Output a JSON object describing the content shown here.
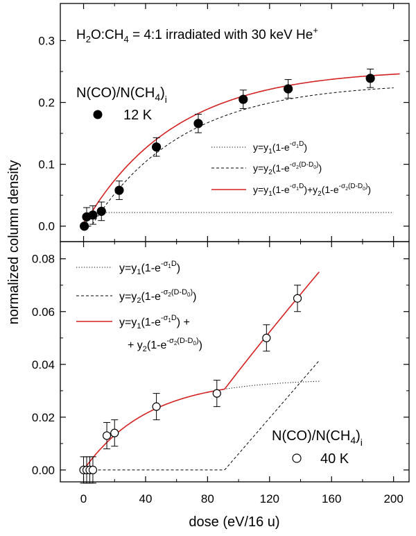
{
  "figure": {
    "ylabel": "normalized column density",
    "xlabel": "dose (eV/16 u)"
  },
  "colors": {
    "fit": "#d42020",
    "axis": "#000000"
  },
  "chart_data": [
    {
      "type": "scatter",
      "panel": "top",
      "title": {
        "text": "H2O:CH4 = 4:1 irradiated with 30 keV He+",
        "parts": [
          "H",
          "2",
          "O:CH",
          "4",
          " = 4:1 irradiated with 30 keV He",
          "+"
        ]
      },
      "xlim": [
        -15,
        210
      ],
      "ylim": [
        -0.025,
        0.36
      ],
      "xticks": [
        0,
        40,
        80,
        120,
        160,
        200
      ],
      "yticks": [
        0.0,
        0.1,
        0.2,
        0.3
      ],
      "ytick_labels": [
        "0.0",
        "0.1",
        "0.2",
        "0.3"
      ],
      "series_label": {
        "main": "N(CO)/N(CH",
        "sub": "4",
        "close": ")",
        "sub2": "i"
      },
      "marker_label": "12 K",
      "marker": "filled-circle",
      "points": [
        {
          "x": 0.5,
          "y": 0.0,
          "err": 0.0
        },
        {
          "x": 2,
          "y": 0.015,
          "err": 0.015
        },
        {
          "x": 6,
          "y": 0.018,
          "err": 0.015
        },
        {
          "x": 11.5,
          "y": 0.024,
          "err": 0.015
        },
        {
          "x": 23,
          "y": 0.058,
          "err": 0.015
        },
        {
          "x": 47,
          "y": 0.128,
          "err": 0.015
        },
        {
          "x": 74,
          "y": 0.166,
          "err": 0.015
        },
        {
          "x": 103,
          "y": 0.205,
          "err": 0.015
        },
        {
          "x": 132,
          "y": 0.222,
          "err": 0.015
        },
        {
          "x": 185,
          "y": 0.239,
          "err": 0.015
        }
      ],
      "legend": [
        {
          "style": "dotted",
          "label": "y=y1(1-e^(-σ1D))"
        },
        {
          "style": "dashed",
          "label": "y=y2(1-e^(-σ2(D-D0)))"
        },
        {
          "style": "solid-red",
          "label": "y=y1(1-e^(-σ1D))+y2(1-e^(-σ2(D-D0)))"
        }
      ],
      "fit": {
        "y1": 0.022,
        "sigma1": 0.6,
        "y2": 0.232,
        "sigma2": 0.017,
        "D0": 5
      }
    },
    {
      "type": "scatter",
      "panel": "bottom",
      "xlim": [
        -15,
        210
      ],
      "ylim": [
        -0.0045,
        0.0865
      ],
      "xticks": [
        0,
        40,
        80,
        120,
        160,
        200
      ],
      "yticks": [
        0.0,
        0.02,
        0.04,
        0.06,
        0.08
      ],
      "ytick_labels": [
        "0.00",
        "0.02",
        "0.04",
        "0.06",
        "0.08"
      ],
      "series_label": {
        "main": "N(CO)/N(CH",
        "sub": "4",
        "close": ")",
        "sub2": "i"
      },
      "marker_label": "40 K",
      "marker": "open-circle",
      "points": [
        {
          "x": 0,
          "y": 0.0,
          "err": 0.005
        },
        {
          "x": 2,
          "y": 0.0,
          "err": 0.005
        },
        {
          "x": 4,
          "y": 0.0,
          "err": 0.005
        },
        {
          "x": 6,
          "y": 0.0,
          "err": 0.005
        },
        {
          "x": 15,
          "y": 0.013,
          "err": 0.005
        },
        {
          "x": 20,
          "y": 0.014,
          "err": 0.005
        },
        {
          "x": 47,
          "y": 0.024,
          "err": 0.005
        },
        {
          "x": 86,
          "y": 0.029,
          "err": 0.005
        },
        {
          "x": 118,
          "y": 0.05,
          "err": 0.005
        },
        {
          "x": 138,
          "y": 0.065,
          "err": 0.005
        }
      ],
      "legend": [
        {
          "style": "dotted",
          "label": "y=y1(1-e^(-σ1D))"
        },
        {
          "style": "dashed",
          "label": "y=y2(1-e^(-σ2(D-D0)))"
        },
        {
          "style": "solid-red",
          "label": "y=y1(1-e^(-σ1D)) + + y2(1-e^(-σ2(D-D0)))"
        }
      ],
      "fit": {
        "y1": 0.0345,
        "sigma1": 0.024,
        "slope2": 0.000679,
        "D0": 91,
        "xmax": 152
      }
    }
  ]
}
